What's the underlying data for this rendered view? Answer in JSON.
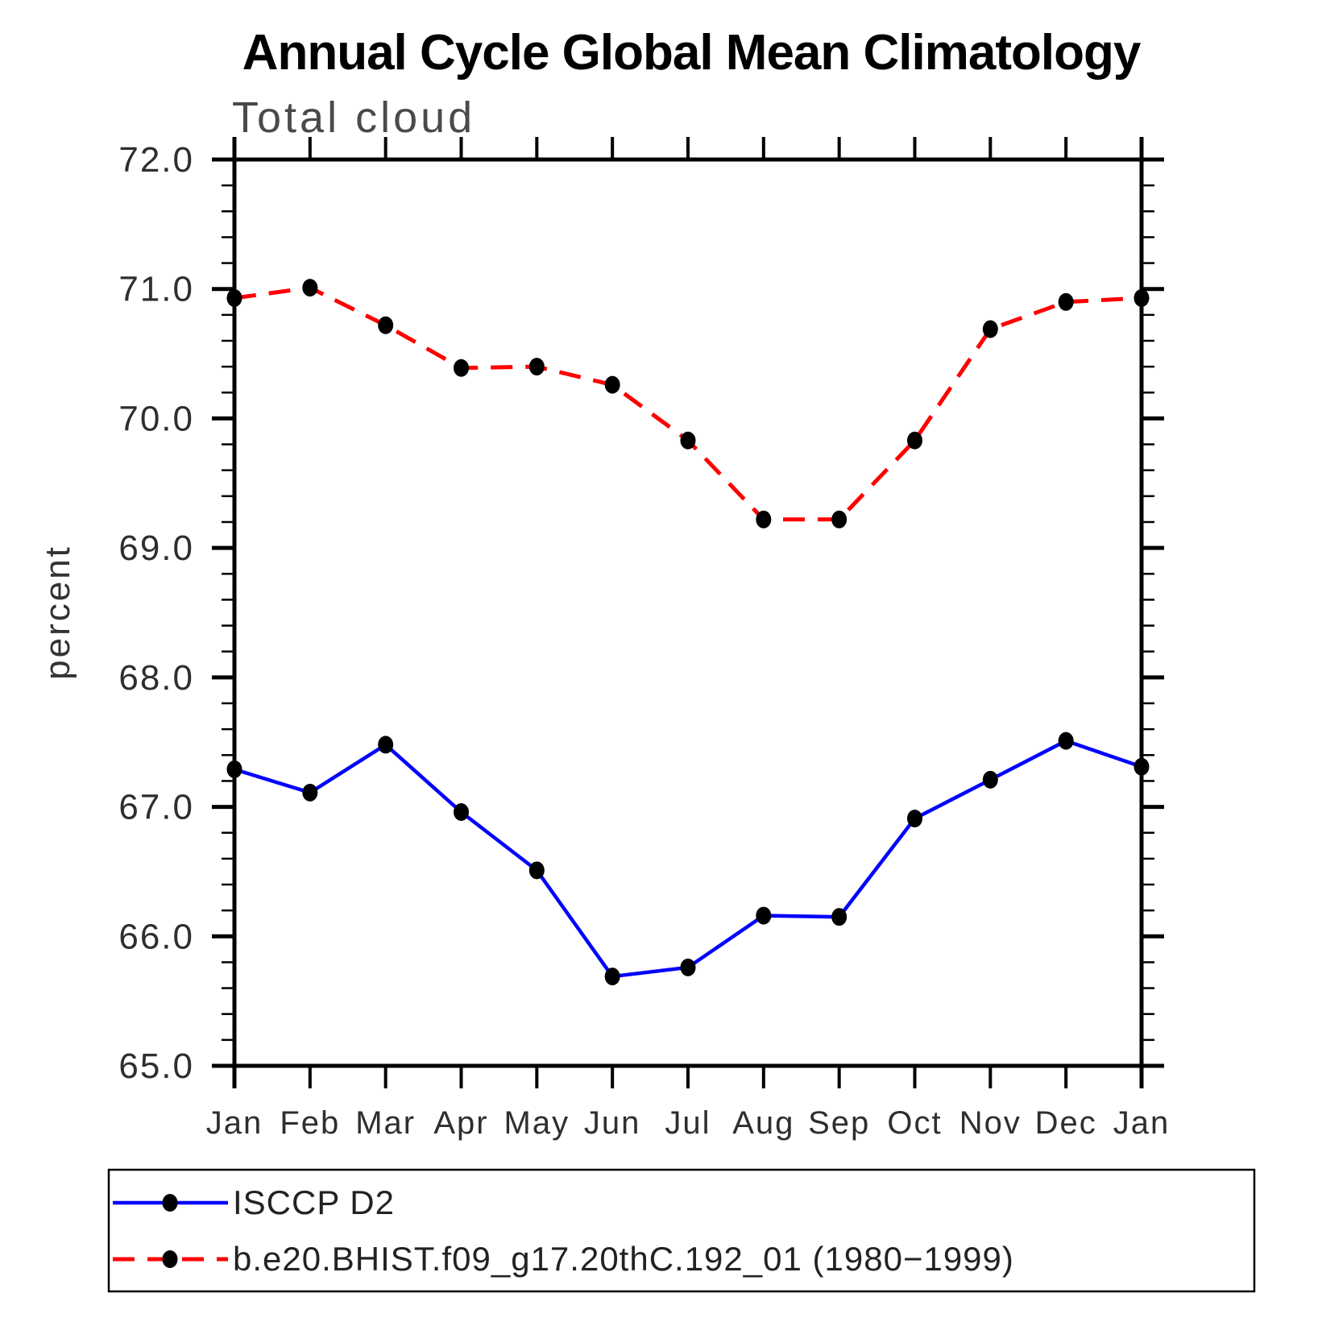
{
  "chart_data": {
    "type": "line",
    "title": "Annual Cycle Global Mean Climatology",
    "subtitle": "Total cloud",
    "ylabel": "percent",
    "xlabel": "",
    "categories": [
      "Jan",
      "Feb",
      "Mar",
      "Apr",
      "May",
      "Jun",
      "Jul",
      "Aug",
      "Sep",
      "Oct",
      "Nov",
      "Dec",
      "Jan"
    ],
    "ylim": [
      65.0,
      72.0
    ],
    "ytick_labels": [
      "65.0",
      "66.0",
      "67.0",
      "68.0",
      "69.0",
      "70.0",
      "71.0",
      "72.0"
    ],
    "ytick_interval": 1.0,
    "yminor_interval": 0.2,
    "grid": false,
    "legend_position": "bottom-left-box",
    "axis_color": "#000000",
    "marker_color": "#000000",
    "series": [
      {
        "name": "ISCCP D2",
        "color": "#0000ff",
        "line_style": "solid",
        "marker": "filled-circle",
        "values": [
          67.29,
          67.11,
          67.48,
          66.96,
          66.51,
          65.69,
          65.76,
          66.16,
          66.15,
          66.91,
          67.21,
          67.51,
          67.31
        ]
      },
      {
        "name": "b.e20.BHIST.f09_g17.20thC.192_01 (1980−1999)",
        "color": "#ff0000",
        "line_style": "dashed",
        "marker": "filled-circle",
        "values": [
          70.93,
          71.01,
          70.72,
          70.39,
          70.4,
          70.26,
          69.83,
          69.22,
          69.22,
          69.83,
          70.69,
          70.9,
          70.93
        ]
      }
    ]
  }
}
